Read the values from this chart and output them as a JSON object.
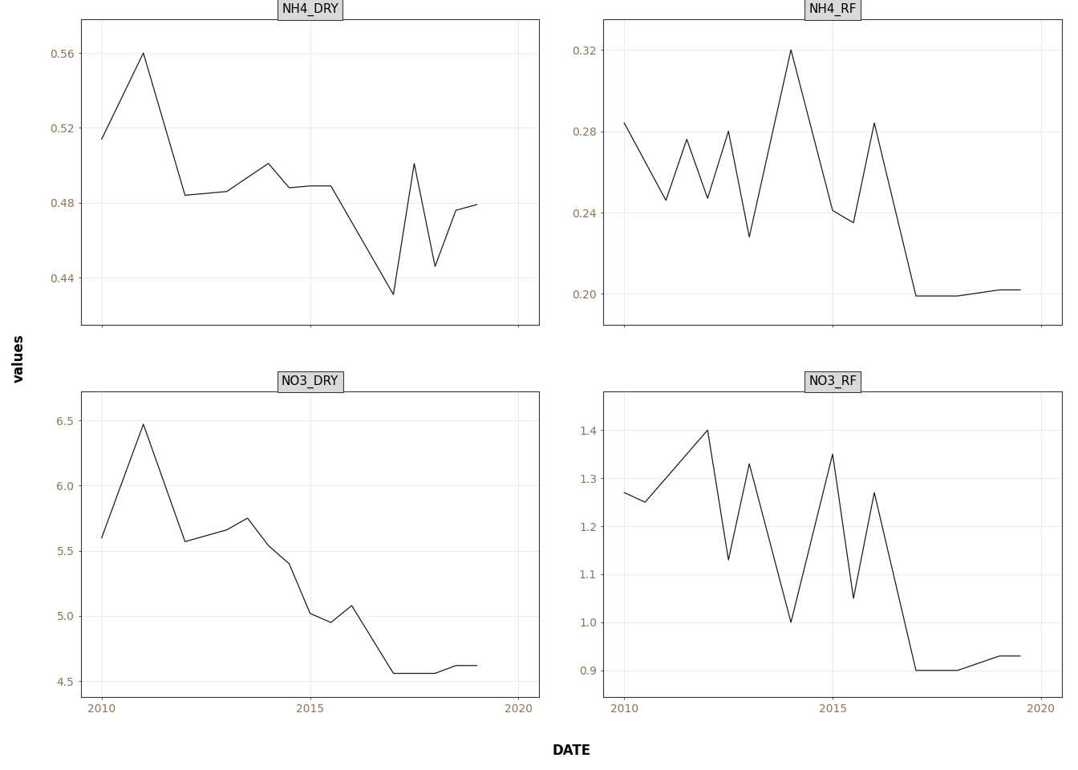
{
  "subplots": [
    {
      "title": "NH4_DRY",
      "x": [
        2010,
        2011,
        2012,
        2013,
        2014,
        2014.5,
        2015,
        2015.5,
        2017,
        2017.5,
        2018,
        2018.5,
        2019
      ],
      "y": [
        0.514,
        0.56,
        0.484,
        0.486,
        0.501,
        0.488,
        0.489,
        0.489,
        0.431,
        0.501,
        0.446,
        0.476,
        0.479
      ],
      "ylim": [
        0.415,
        0.578
      ],
      "yticks": [
        0.44,
        0.48,
        0.52,
        0.56
      ]
    },
    {
      "title": "NH4_RF",
      "x": [
        2010,
        2011,
        2011.5,
        2012,
        2012.5,
        2013,
        2014,
        2015,
        2015.5,
        2016,
        2017,
        2018,
        2019,
        2019.5
      ],
      "y": [
        0.284,
        0.246,
        0.276,
        0.247,
        0.28,
        0.228,
        0.32,
        0.241,
        0.235,
        0.284,
        0.199,
        0.199,
        0.202,
        0.202
      ],
      "ylim": [
        0.185,
        0.335
      ],
      "yticks": [
        0.2,
        0.24,
        0.28,
        0.32
      ]
    },
    {
      "title": "NO3_DRY",
      "x": [
        2010,
        2011,
        2012,
        2013,
        2013.5,
        2014,
        2014.5,
        2015,
        2015.5,
        2016,
        2017,
        2018,
        2018.5,
        2019
      ],
      "y": [
        5.6,
        6.47,
        5.57,
        5.66,
        5.75,
        5.54,
        5.4,
        5.02,
        4.95,
        5.08,
        4.56,
        4.56,
        4.62,
        4.62
      ],
      "ylim": [
        4.38,
        6.72
      ],
      "yticks": [
        4.5,
        5.0,
        5.5,
        6.0,
        6.5
      ]
    },
    {
      "title": "NO3_RF",
      "x": [
        2010,
        2010.5,
        2012,
        2012.5,
        2013,
        2014,
        2015,
        2015.5,
        2016,
        2017,
        2018,
        2019,
        2019.5
      ],
      "y": [
        1.27,
        1.25,
        1.4,
        1.13,
        1.33,
        1.0,
        1.35,
        1.05,
        1.27,
        0.9,
        0.9,
        0.93,
        0.93
      ],
      "ylim": [
        0.845,
        1.48
      ],
      "yticks": [
        0.9,
        1.0,
        1.1,
        1.2,
        1.3,
        1.4
      ]
    }
  ],
  "xlabel": "DATE",
  "ylabel": "values",
  "xlim": [
    2009.5,
    2020.5
  ],
  "xticks": [
    2010,
    2015,
    2020
  ],
  "line_color": "#1a1a1a",
  "line_width": 0.9,
  "panel_bg": "#ffffff",
  "strip_bg": "#d9d9d9",
  "strip_border": "#3a3a3a",
  "outer_bg": "#ffffff",
  "grid_color": "#e8e8e8",
  "grid_lw": 0.6,
  "title_fontsize": 11,
  "label_fontsize": 12,
  "tick_fontsize": 10,
  "tick_color": "#8B7355",
  "axis_color": "#333333",
  "spine_color": "#333333"
}
